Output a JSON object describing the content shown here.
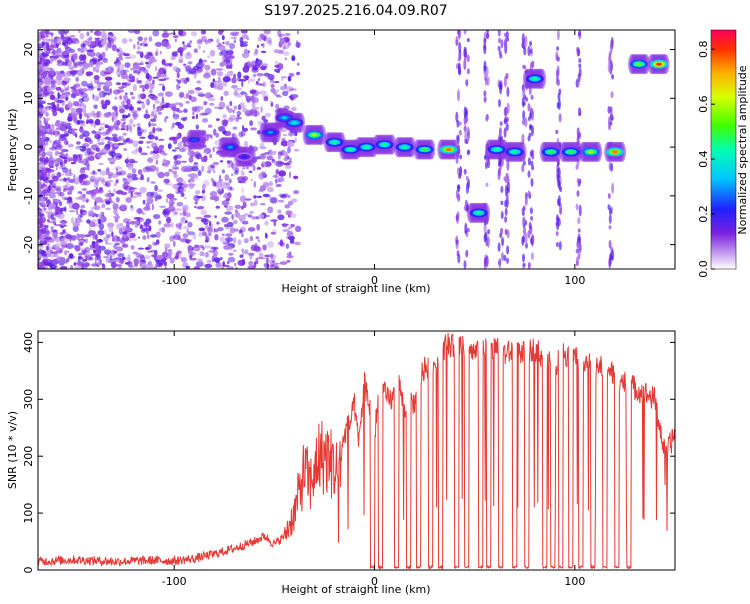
{
  "figure_title": "S197.2025.216.04.09.R07",
  "colors": {
    "snr_line": "#e53935",
    "axis": "#000000",
    "background": "#ffffff"
  },
  "chart_data": [
    {
      "type": "heatmap",
      "title": "S197.2025.216.04.09.R07",
      "xlabel": "Height of straight line (km)",
      "ylabel": "Frequency (Hz)",
      "xlim": [
        -168,
        150
      ],
      "ylim": [
        -25,
        24
      ],
      "x_ticks": [
        -100,
        0,
        100
      ],
      "y_ticks": [
        -20,
        -10,
        0,
        10,
        20
      ],
      "colorbar": {
        "label": "Normalized spectral amplitude",
        "range": [
          0,
          0.87
        ],
        "ticks": [
          0.0,
          0.2,
          0.4,
          0.6,
          0.8
        ],
        "colormap": "rainbow"
      },
      "tone_track": [
        {
          "x": -90,
          "y": 1.5,
          "amp": 0.25
        },
        {
          "x": -72,
          "y": 0,
          "amp": 0.3
        },
        {
          "x": -65,
          "y": -2,
          "amp": 0.2
        },
        {
          "x": -52,
          "y": 3,
          "amp": 0.3
        },
        {
          "x": -45,
          "y": 6,
          "amp": 0.35
        },
        {
          "x": -40,
          "y": 5,
          "amp": 0.4
        },
        {
          "x": -30,
          "y": 2.5,
          "amp": 0.6
        },
        {
          "x": -20,
          "y": 1,
          "amp": 0.45
        },
        {
          "x": -12,
          "y": -0.5,
          "amp": 0.45
        },
        {
          "x": -4,
          "y": 0,
          "amp": 0.45
        },
        {
          "x": 5,
          "y": 0.5,
          "amp": 0.45
        },
        {
          "x": 15,
          "y": 0,
          "amp": 0.45
        },
        {
          "x": 25,
          "y": -0.5,
          "amp": 0.5
        },
        {
          "x": 37,
          "y": -0.5,
          "amp": 0.75
        },
        {
          "x": 52,
          "y": -13.5,
          "amp": 0.45
        },
        {
          "x": 61,
          "y": -0.5,
          "amp": 0.45
        },
        {
          "x": 70,
          "y": -1,
          "amp": 0.45
        },
        {
          "x": 80,
          "y": 14,
          "amp": 0.45
        },
        {
          "x": 88,
          "y": -1,
          "amp": 0.5
        },
        {
          "x": 98,
          "y": -1,
          "amp": 0.5
        },
        {
          "x": 108,
          "y": -1,
          "amp": 0.6
        },
        {
          "x": 120,
          "y": -1,
          "amp": 0.75
        },
        {
          "x": 132,
          "y": 17,
          "amp": 0.55
        },
        {
          "x": 142,
          "y": 17,
          "amp": 0.8
        }
      ]
    },
    {
      "type": "line",
      "xlabel": "Height of straight line (km)",
      "ylabel": "SNR (10 * v/v)",
      "xlim": [
        -168,
        150
      ],
      "ylim": [
        0,
        420
      ],
      "x_ticks": [
        -100,
        0,
        100
      ],
      "y_ticks": [
        0,
        100,
        200,
        300,
        400
      ],
      "series": [
        {
          "x": [
            -168,
            -150,
            -130,
            -110,
            -100,
            -90,
            -80,
            -70,
            -60,
            -55,
            -50,
            -45,
            -40,
            -38,
            -35,
            -32,
            -30,
            -28,
            -25,
            -22,
            -20,
            -18,
            -15,
            -12,
            -10,
            -8,
            -5,
            -2,
            0,
            3,
            6,
            9,
            12,
            15,
            18,
            20,
            24,
            28,
            32,
            36,
            40,
            45,
            50,
            55,
            60,
            65,
            70,
            75,
            80,
            85,
            90,
            95,
            100,
            105,
            110,
            115,
            120,
            125,
            130,
            135,
            140,
            145,
            150
          ],
          "y": [
            15,
            18,
            15,
            17,
            16,
            20,
            28,
            38,
            50,
            60,
            45,
            60,
            100,
            130,
            175,
            150,
            180,
            200,
            200,
            190,
            180,
            170,
            240,
            260,
            290,
            220,
            330,
            280,
            240,
            330,
            300,
            300,
            330,
            280,
            300,
            290,
            350,
            360,
            365,
            400,
            390,
            395,
            380,
            385,
            390,
            380,
            385,
            380,
            390,
            370,
            360,
            380,
            375,
            370,
            350,
            360,
            340,
            330,
            320,
            310,
            300,
            200,
            240
          ]
        }
      ]
    }
  ]
}
